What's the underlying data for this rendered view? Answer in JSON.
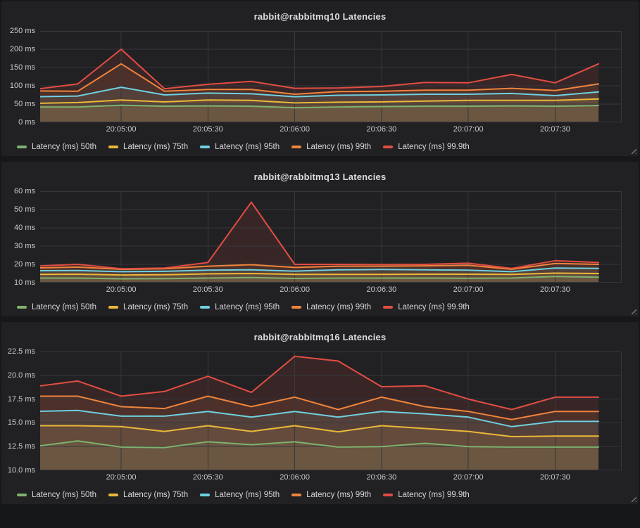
{
  "colors": {
    "page_background": "#161719",
    "panel_background": "#212124",
    "series": {
      "p50": "#7EB26D",
      "p75": "#EAB839",
      "p95": "#6ED0E0",
      "p99": "#EF843C",
      "p999": "#E24D42"
    }
  },
  "chart_data": [
    {
      "type": "area",
      "title": "rabbit@rabbitmq10 Latencies",
      "x": [
        "20:04:30",
        "20:04:45",
        "20:05:00",
        "20:05:15",
        "20:05:30",
        "20:05:45",
        "20:06:00",
        "20:06:15",
        "20:06:30",
        "20:06:45",
        "20:07:00",
        "20:07:15",
        "20:07:30",
        "20:07:45"
      ],
      "x_ticks": [
        "20:05:00",
        "20:05:30",
        "20:06:00",
        "20:06:30",
        "20:07:00",
        "20:07:30"
      ],
      "x_range": [
        "20:04:32",
        "20:07:53"
      ],
      "ylim": [
        0,
        250
      ],
      "y_ticks": [
        0,
        50,
        100,
        150,
        200,
        250
      ],
      "y_tick_labels": [
        "0 ms",
        "50 ms",
        "100 ms",
        "150 ms",
        "200 ms",
        "250 ms"
      ],
      "grid": true,
      "legend_position": "bottom",
      "series": [
        {
          "name": "Latency (ms) 50th",
          "color": "#7EB26D",
          "values": [
            42,
            42,
            47,
            44,
            45,
            44,
            40,
            42,
            43,
            44,
            44,
            45,
            44,
            46
          ]
        },
        {
          "name": "Latency (ms) 75th",
          "color": "#EAB839",
          "values": [
            52,
            54,
            61,
            56,
            61,
            60,
            53,
            55,
            56,
            58,
            60,
            60,
            60,
            64
          ]
        },
        {
          "name": "Latency (ms) 95th",
          "color": "#6ED0E0",
          "values": [
            70,
            72,
            96,
            75,
            80,
            78,
            70,
            74,
            75,
            77,
            77,
            79,
            73,
            83
          ]
        },
        {
          "name": "Latency (ms) 99th",
          "color": "#EF843C",
          "values": [
            86,
            85,
            160,
            85,
            90,
            90,
            77,
            84,
            85,
            88,
            88,
            93,
            87,
            105
          ]
        },
        {
          "name": "Latency (ms) 99.9th",
          "color": "#E24D42",
          "values": [
            90,
            105,
            200,
            92,
            104,
            112,
            93,
            94,
            98,
            109,
            108,
            131,
            108,
            160
          ]
        }
      ]
    },
    {
      "type": "area",
      "title": "rabbit@rabbitmq13 Latencies",
      "x": [
        "20:04:30",
        "20:04:45",
        "20:05:00",
        "20:05:15",
        "20:05:30",
        "20:05:45",
        "20:06:00",
        "20:06:15",
        "20:06:30",
        "20:06:45",
        "20:07:00",
        "20:07:15",
        "20:07:30",
        "20:07:45"
      ],
      "x_ticks": [
        "20:05:00",
        "20:05:30",
        "20:06:00",
        "20:06:30",
        "20:07:00",
        "20:07:30"
      ],
      "x_range": [
        "20:04:32",
        "20:07:53"
      ],
      "ylim": [
        10,
        60
      ],
      "y_ticks": [
        10,
        20,
        30,
        40,
        50,
        60
      ],
      "y_tick_labels": [
        "10 ms",
        "20 ms",
        "30 ms",
        "40 ms",
        "50 ms",
        "60 ms"
      ],
      "grid": true,
      "legend_position": "bottom",
      "series": [
        {
          "name": "Latency (ms) 50th",
          "color": "#7EB26D",
          "values": [
            12.5,
            12.5,
            12.1,
            12.2,
            12.5,
            12.8,
            12.3,
            12.5,
            12.5,
            12.5,
            12.4,
            12.5,
            13.4,
            13.0
          ]
        },
        {
          "name": "Latency (ms) 75th",
          "color": "#EAB839",
          "values": [
            14.5,
            14.6,
            14.2,
            14.3,
            14.8,
            15.0,
            14.5,
            14.5,
            14.5,
            14.6,
            14.6,
            14.5,
            15.2,
            15.0
          ]
        },
        {
          "name": "Latency (ms) 95th",
          "color": "#6ED0E0",
          "values": [
            16.5,
            16.6,
            16.0,
            16.2,
            16.8,
            17.0,
            16.3,
            17.0,
            17.2,
            17.0,
            16.8,
            16.0,
            18.0,
            17.8
          ]
        },
        {
          "name": "Latency (ms) 99th",
          "color": "#EF843C",
          "values": [
            18.0,
            18.5,
            17.3,
            17.6,
            19.0,
            19.8,
            18.3,
            19.0,
            19.0,
            19.2,
            19.5,
            17.3,
            20.5,
            20.0
          ]
        },
        {
          "name": "Latency (ms) 99.9th",
          "color": "#E24D42",
          "values": [
            19.0,
            20.0,
            17.6,
            18.0,
            21.0,
            54.0,
            20.0,
            20.0,
            19.9,
            20.0,
            20.6,
            17.8,
            22.0,
            21.0
          ]
        }
      ]
    },
    {
      "type": "area",
      "title": "rabbit@rabbitmq16 Latencies",
      "x": [
        "20:04:30",
        "20:04:45",
        "20:05:00",
        "20:05:15",
        "20:05:30",
        "20:05:45",
        "20:06:00",
        "20:06:15",
        "20:06:30",
        "20:06:45",
        "20:07:00",
        "20:07:15",
        "20:07:30",
        "20:07:45"
      ],
      "x_ticks": [
        "20:05:00",
        "20:05:30",
        "20:06:00",
        "20:06:30",
        "20:07:00",
        "20:07:30"
      ],
      "x_range": [
        "20:04:32",
        "20:07:53"
      ],
      "ylim": [
        10,
        22.5
      ],
      "y_ticks": [
        10,
        12.5,
        15,
        17.5,
        20,
        22.5
      ],
      "y_tick_labels": [
        "10.0 ms",
        "12.5 ms",
        "15.0 ms",
        "17.5 ms",
        "20.0 ms",
        "22.5 ms"
      ],
      "grid": true,
      "legend_position": "bottom",
      "series": [
        {
          "name": "Latency (ms) 50th",
          "color": "#7EB26D",
          "values": [
            12.5,
            13.1,
            12.45,
            12.4,
            13.0,
            12.7,
            13.0,
            12.45,
            12.5,
            12.85,
            12.5,
            12.45,
            12.45,
            12.45
          ]
        },
        {
          "name": "Latency (ms) 75th",
          "color": "#EAB839",
          "values": [
            14.7,
            14.7,
            14.6,
            14.1,
            14.7,
            14.1,
            14.7,
            14.05,
            14.7,
            14.4,
            14.1,
            13.55,
            13.6,
            13.6
          ]
        },
        {
          "name": "Latency (ms) 95th",
          "color": "#6ED0E0",
          "values": [
            16.2,
            16.3,
            15.7,
            15.7,
            16.2,
            15.6,
            16.2,
            15.6,
            16.2,
            15.95,
            15.6,
            14.6,
            15.15,
            15.15
          ]
        },
        {
          "name": "Latency (ms) 99th",
          "color": "#EF843C",
          "values": [
            17.8,
            17.8,
            16.7,
            16.5,
            17.8,
            16.7,
            17.7,
            16.4,
            17.7,
            16.7,
            16.2,
            15.35,
            16.2,
            16.2
          ]
        },
        {
          "name": "Latency (ms) 99.9th",
          "color": "#E24D42",
          "values": [
            18.8,
            19.4,
            17.8,
            18.3,
            19.9,
            18.2,
            22.0,
            21.5,
            18.8,
            18.9,
            17.5,
            16.4,
            17.7,
            17.7
          ]
        }
      ]
    }
  ]
}
